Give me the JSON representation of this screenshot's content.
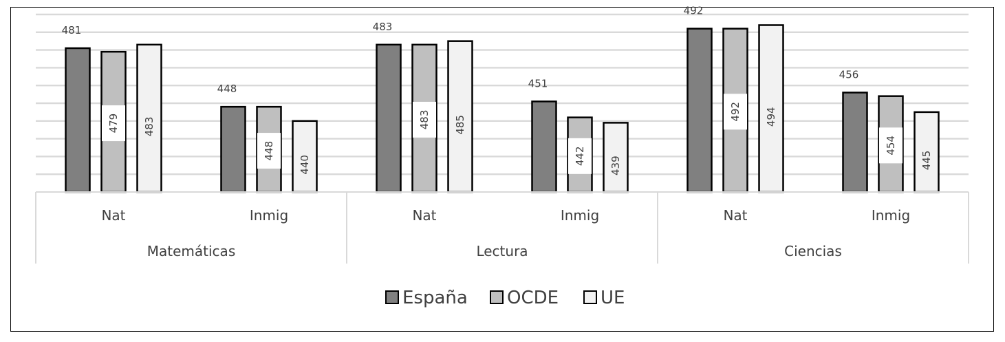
{
  "chart_data": {
    "type": "bar",
    "title": "",
    "xlabel": "",
    "ylabel": "",
    "ylim": [
      400,
      500
    ],
    "grid": true,
    "legend_position": "bottom",
    "groups": [
      {
        "name": "Matemáticas",
        "categories": [
          "Nat",
          "Inmig"
        ]
      },
      {
        "name": "Lectura",
        "categories": [
          "Nat",
          "Inmig"
        ]
      },
      {
        "name": "Ciencias",
        "categories": [
          "Nat",
          "Inmig"
        ]
      }
    ],
    "series": [
      {
        "name": "España",
        "color": "#808080",
        "values": [
          481,
          448,
          483,
          451,
          492,
          456
        ]
      },
      {
        "name": "OCDE",
        "color": "#bfbfbf",
        "values": [
          479,
          448,
          483,
          442,
          492,
          454
        ]
      },
      {
        "name": "UE",
        "color": "#f2f2f2",
        "values": [
          483,
          440,
          485,
          439,
          494,
          445
        ]
      }
    ]
  }
}
